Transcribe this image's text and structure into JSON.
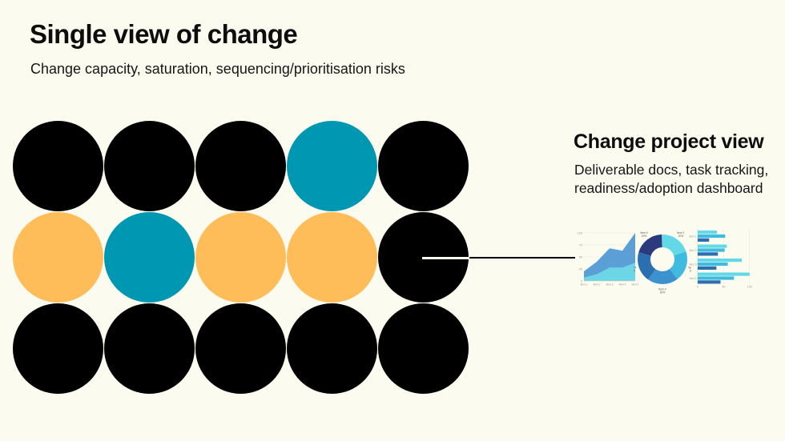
{
  "page": {
    "background_color": "#FBFBEF"
  },
  "header": {
    "title": "Single view of change",
    "subtitle": "Change capacity, saturation, sequencing/prioritisation risks"
  },
  "bubble_grid": {
    "colors": {
      "black": "#000000",
      "teal": "#0097B2",
      "orange": "#FFBD59"
    },
    "rows": [
      [
        "black",
        "black",
        "black",
        "teal",
        "black"
      ],
      [
        "orange",
        "teal",
        "orange",
        "orange",
        "black"
      ],
      [
        "black",
        "black",
        "black",
        "black",
        "black"
      ]
    ]
  },
  "callout": {
    "heading": "Change project view",
    "description_line1": "Deliverable docs, task tracking,",
    "description_line2": "readiness/adoption dashboard"
  },
  "chart_data": [
    {
      "type": "area",
      "note": "stacked area thumbnail; upper series values are cumulative totals",
      "categories": [
        "Item 1",
        "Item 2",
        "Item 3",
        "Item 4",
        "Item 5"
      ],
      "series": [
        {
          "name": "lower-band",
          "color": "#6CD6E6",
          "values": [
            7,
            14,
            28,
            28,
            38
          ]
        },
        {
          "name": "upper-band",
          "color": "#5C9FD6",
          "values": [
            20,
            40,
            68,
            63,
            100
          ]
        }
      ],
      "ylim": [
        0,
        100
      ],
      "yticks": [
        0,
        25,
        50,
        75,
        100
      ],
      "grid": true,
      "legend": false
    },
    {
      "type": "pie",
      "donut": true,
      "labels": [
        "Item 1",
        "Item 2",
        "Item 3",
        "Item 4",
        "Item 5"
      ],
      "values": [
        20,
        20,
        20,
        20,
        20
      ],
      "value_suffix": "%",
      "colors": [
        "#63D9E8",
        "#3EBBDE",
        "#3C92CE",
        "#2C6FB0",
        "#2B3A7D"
      ],
      "legend": false
    },
    {
      "type": "bar",
      "orientation": "horizontal",
      "categories": [
        "Item 1",
        "Item 2",
        "Item 3",
        "Item 4"
      ],
      "series": [
        {
          "name": "series-1",
          "color": "#63D9E8",
          "values": [
            37,
            56,
            85,
            100
          ]
        },
        {
          "name": "series-2",
          "color": "#3EBBDE",
          "values": [
            53,
            52,
            58,
            70
          ]
        },
        {
          "name": "series-3",
          "color": "#2C6FB0",
          "values": [
            22,
            39,
            36,
            44
          ]
        }
      ],
      "xlim": [
        0,
        105
      ],
      "xticks": [
        0,
        50,
        100
      ],
      "grid": true,
      "legend": false
    }
  ]
}
